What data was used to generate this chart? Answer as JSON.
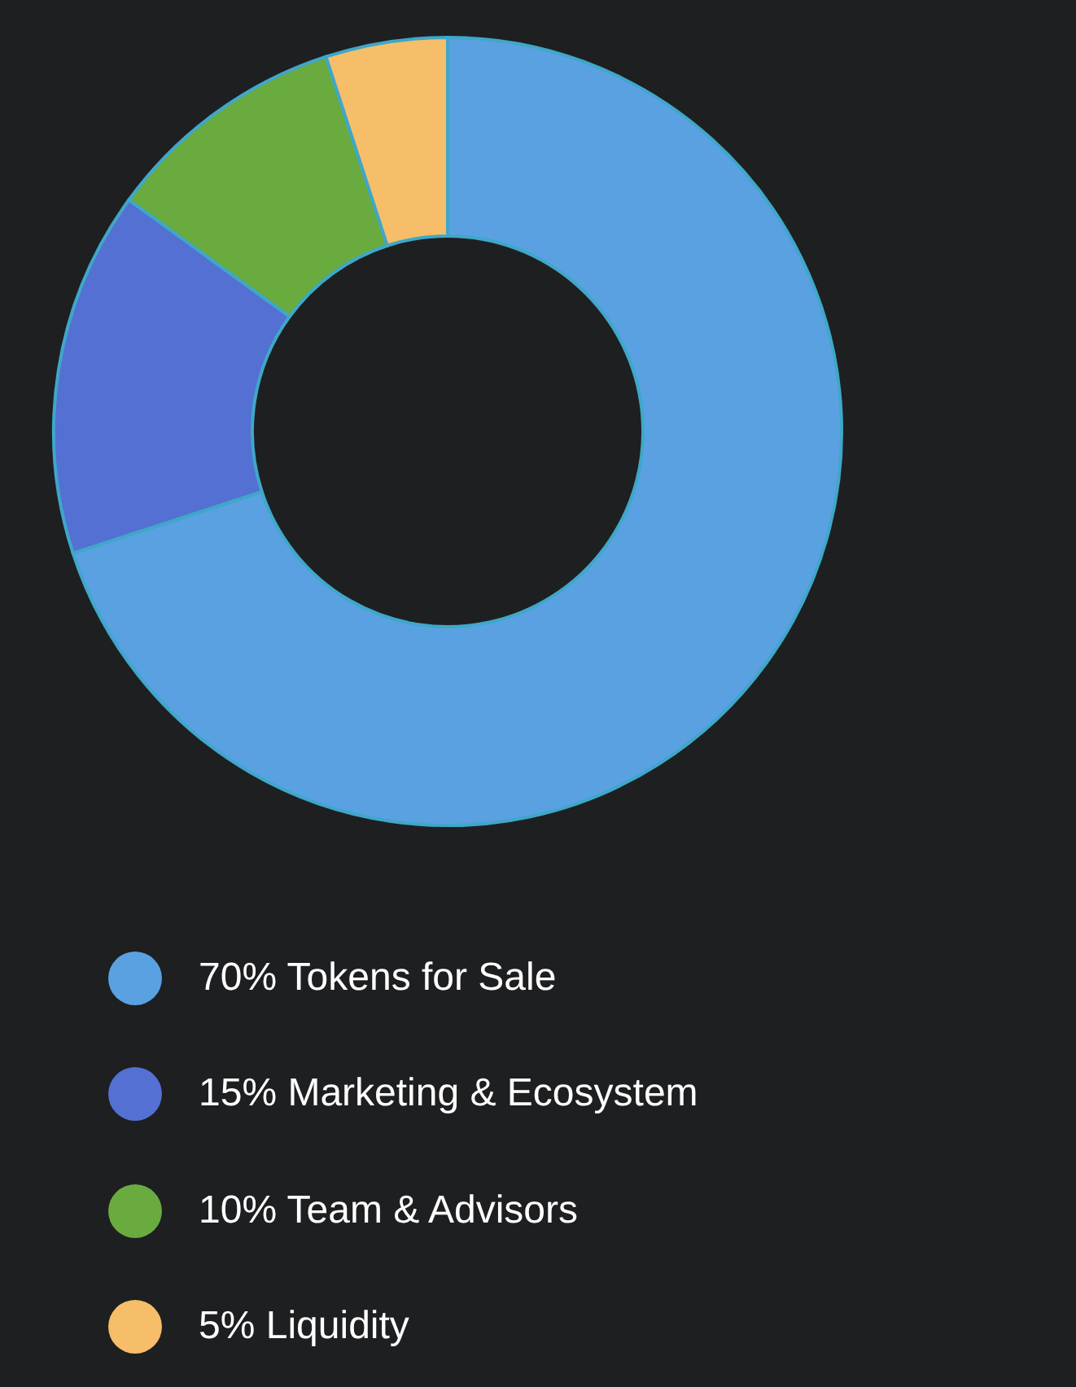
{
  "chart_data": {
    "type": "donut",
    "categories": [
      "Tokens for Sale",
      "Marketing & Ecosystem",
      "Team & Advisors",
      "Liquidity"
    ],
    "values": [
      70,
      15,
      10,
      5
    ],
    "colors": [
      "#5aa1e2",
      "#5470d2",
      "#6aab3f",
      "#f6be69"
    ],
    "value_labels": [
      "70%",
      "15%",
      "10%",
      "5%"
    ],
    "legend": "bottom"
  }
}
